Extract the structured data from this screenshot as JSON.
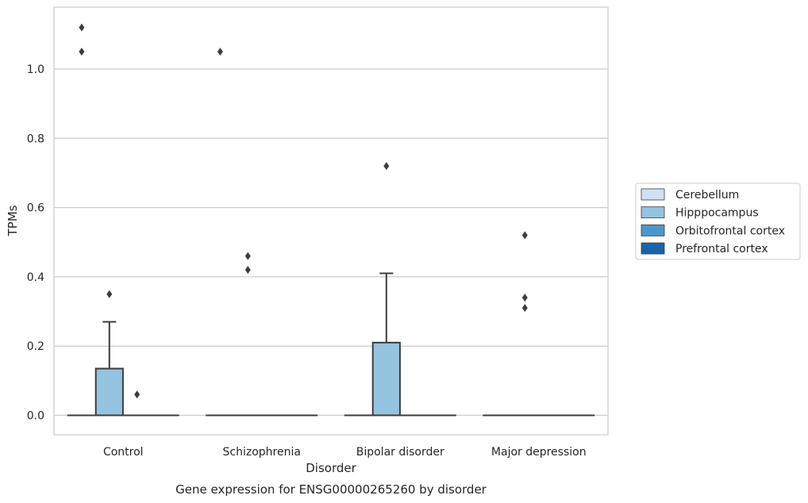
{
  "chart_data": {
    "type": "box",
    "title": "",
    "caption": "Gene expression for ENSG00000265260 by disorder",
    "xlabel": "Disorder",
    "ylabel": "TPMs",
    "ylim": [
      -0.055,
      1.18
    ],
    "yticks": [
      0.0,
      0.2,
      0.4,
      0.6,
      0.8,
      1.0
    ],
    "ytick_labels": [
      "0.0",
      "0.2",
      "0.4",
      "0.6",
      "0.8",
      "1.0"
    ],
    "grid": "horizontal",
    "legend_position": "right",
    "categories": [
      "Control",
      "Schizophrenia",
      "Bipolar disorder",
      "Major depression"
    ],
    "series": [
      {
        "name": "Cerebellum",
        "color": "#d0e1f2",
        "boxes": [
          {
            "q1": 0,
            "median": 0,
            "q3": 0,
            "whisker_low": 0,
            "whisker_high": 0,
            "outliers": [
              1.05,
              1.12
            ]
          },
          {
            "q1": 0,
            "median": 0,
            "q3": 0,
            "whisker_low": 0,
            "whisker_high": 0,
            "outliers": [
              1.05
            ]
          },
          {
            "q1": 0,
            "median": 0,
            "q3": 0,
            "whisker_low": 0,
            "whisker_high": 0,
            "outliers": []
          },
          {
            "q1": 0,
            "median": 0,
            "q3": 0,
            "whisker_low": 0,
            "whisker_high": 0,
            "outliers": []
          }
        ]
      },
      {
        "name": "Hipppocampus",
        "color": "#94c4df",
        "boxes": [
          {
            "q1": 0,
            "median": 0,
            "q3": 0.135,
            "whisker_low": 0,
            "whisker_high": 0.27,
            "outliers": [
              0.35
            ]
          },
          {
            "q1": 0,
            "median": 0,
            "q3": 0,
            "whisker_low": 0,
            "whisker_high": 0,
            "outliers": [
              0.42,
              0.46
            ]
          },
          {
            "q1": 0,
            "median": 0,
            "q3": 0.21,
            "whisker_low": 0,
            "whisker_high": 0.41,
            "outliers": [
              0.72
            ]
          },
          {
            "q1": 0,
            "median": 0,
            "q3": 0,
            "whisker_low": 0,
            "whisker_high": 0,
            "outliers": [
              0.31,
              0.34,
              0.52
            ]
          }
        ]
      },
      {
        "name": "Orbitofrontal cortex",
        "color": "#4a98c9",
        "boxes": [
          {
            "q1": 0,
            "median": 0,
            "q3": 0,
            "whisker_low": 0,
            "whisker_high": 0,
            "outliers": [
              0.06
            ]
          },
          {
            "q1": 0,
            "median": 0,
            "q3": 0,
            "whisker_low": 0,
            "whisker_high": 0,
            "outliers": []
          },
          {
            "q1": 0,
            "median": 0,
            "q3": 0,
            "whisker_low": 0,
            "whisker_high": 0,
            "outliers": []
          },
          {
            "q1": 0,
            "median": 0,
            "q3": 0,
            "whisker_low": 0,
            "whisker_high": 0,
            "outliers": []
          }
        ]
      },
      {
        "name": "Prefrontal cortex",
        "color": "#1764ab",
        "boxes": [
          {
            "q1": 0,
            "median": 0,
            "q3": 0,
            "whisker_low": 0,
            "whisker_high": 0,
            "outliers": []
          },
          {
            "q1": 0,
            "median": 0,
            "q3": 0,
            "whisker_low": 0,
            "whisker_high": 0,
            "outliers": []
          },
          {
            "q1": 0,
            "median": 0,
            "q3": 0,
            "whisker_low": 0,
            "whisker_high": 0,
            "outliers": []
          },
          {
            "q1": 0,
            "median": 0,
            "q3": 0,
            "whisker_low": 0,
            "whisker_high": 0,
            "outliers": []
          }
        ]
      }
    ],
    "colors": {
      "grid": "#cccccc",
      "frame": "#cccccc",
      "line": "#3d3d3d",
      "text": "#262626"
    }
  }
}
